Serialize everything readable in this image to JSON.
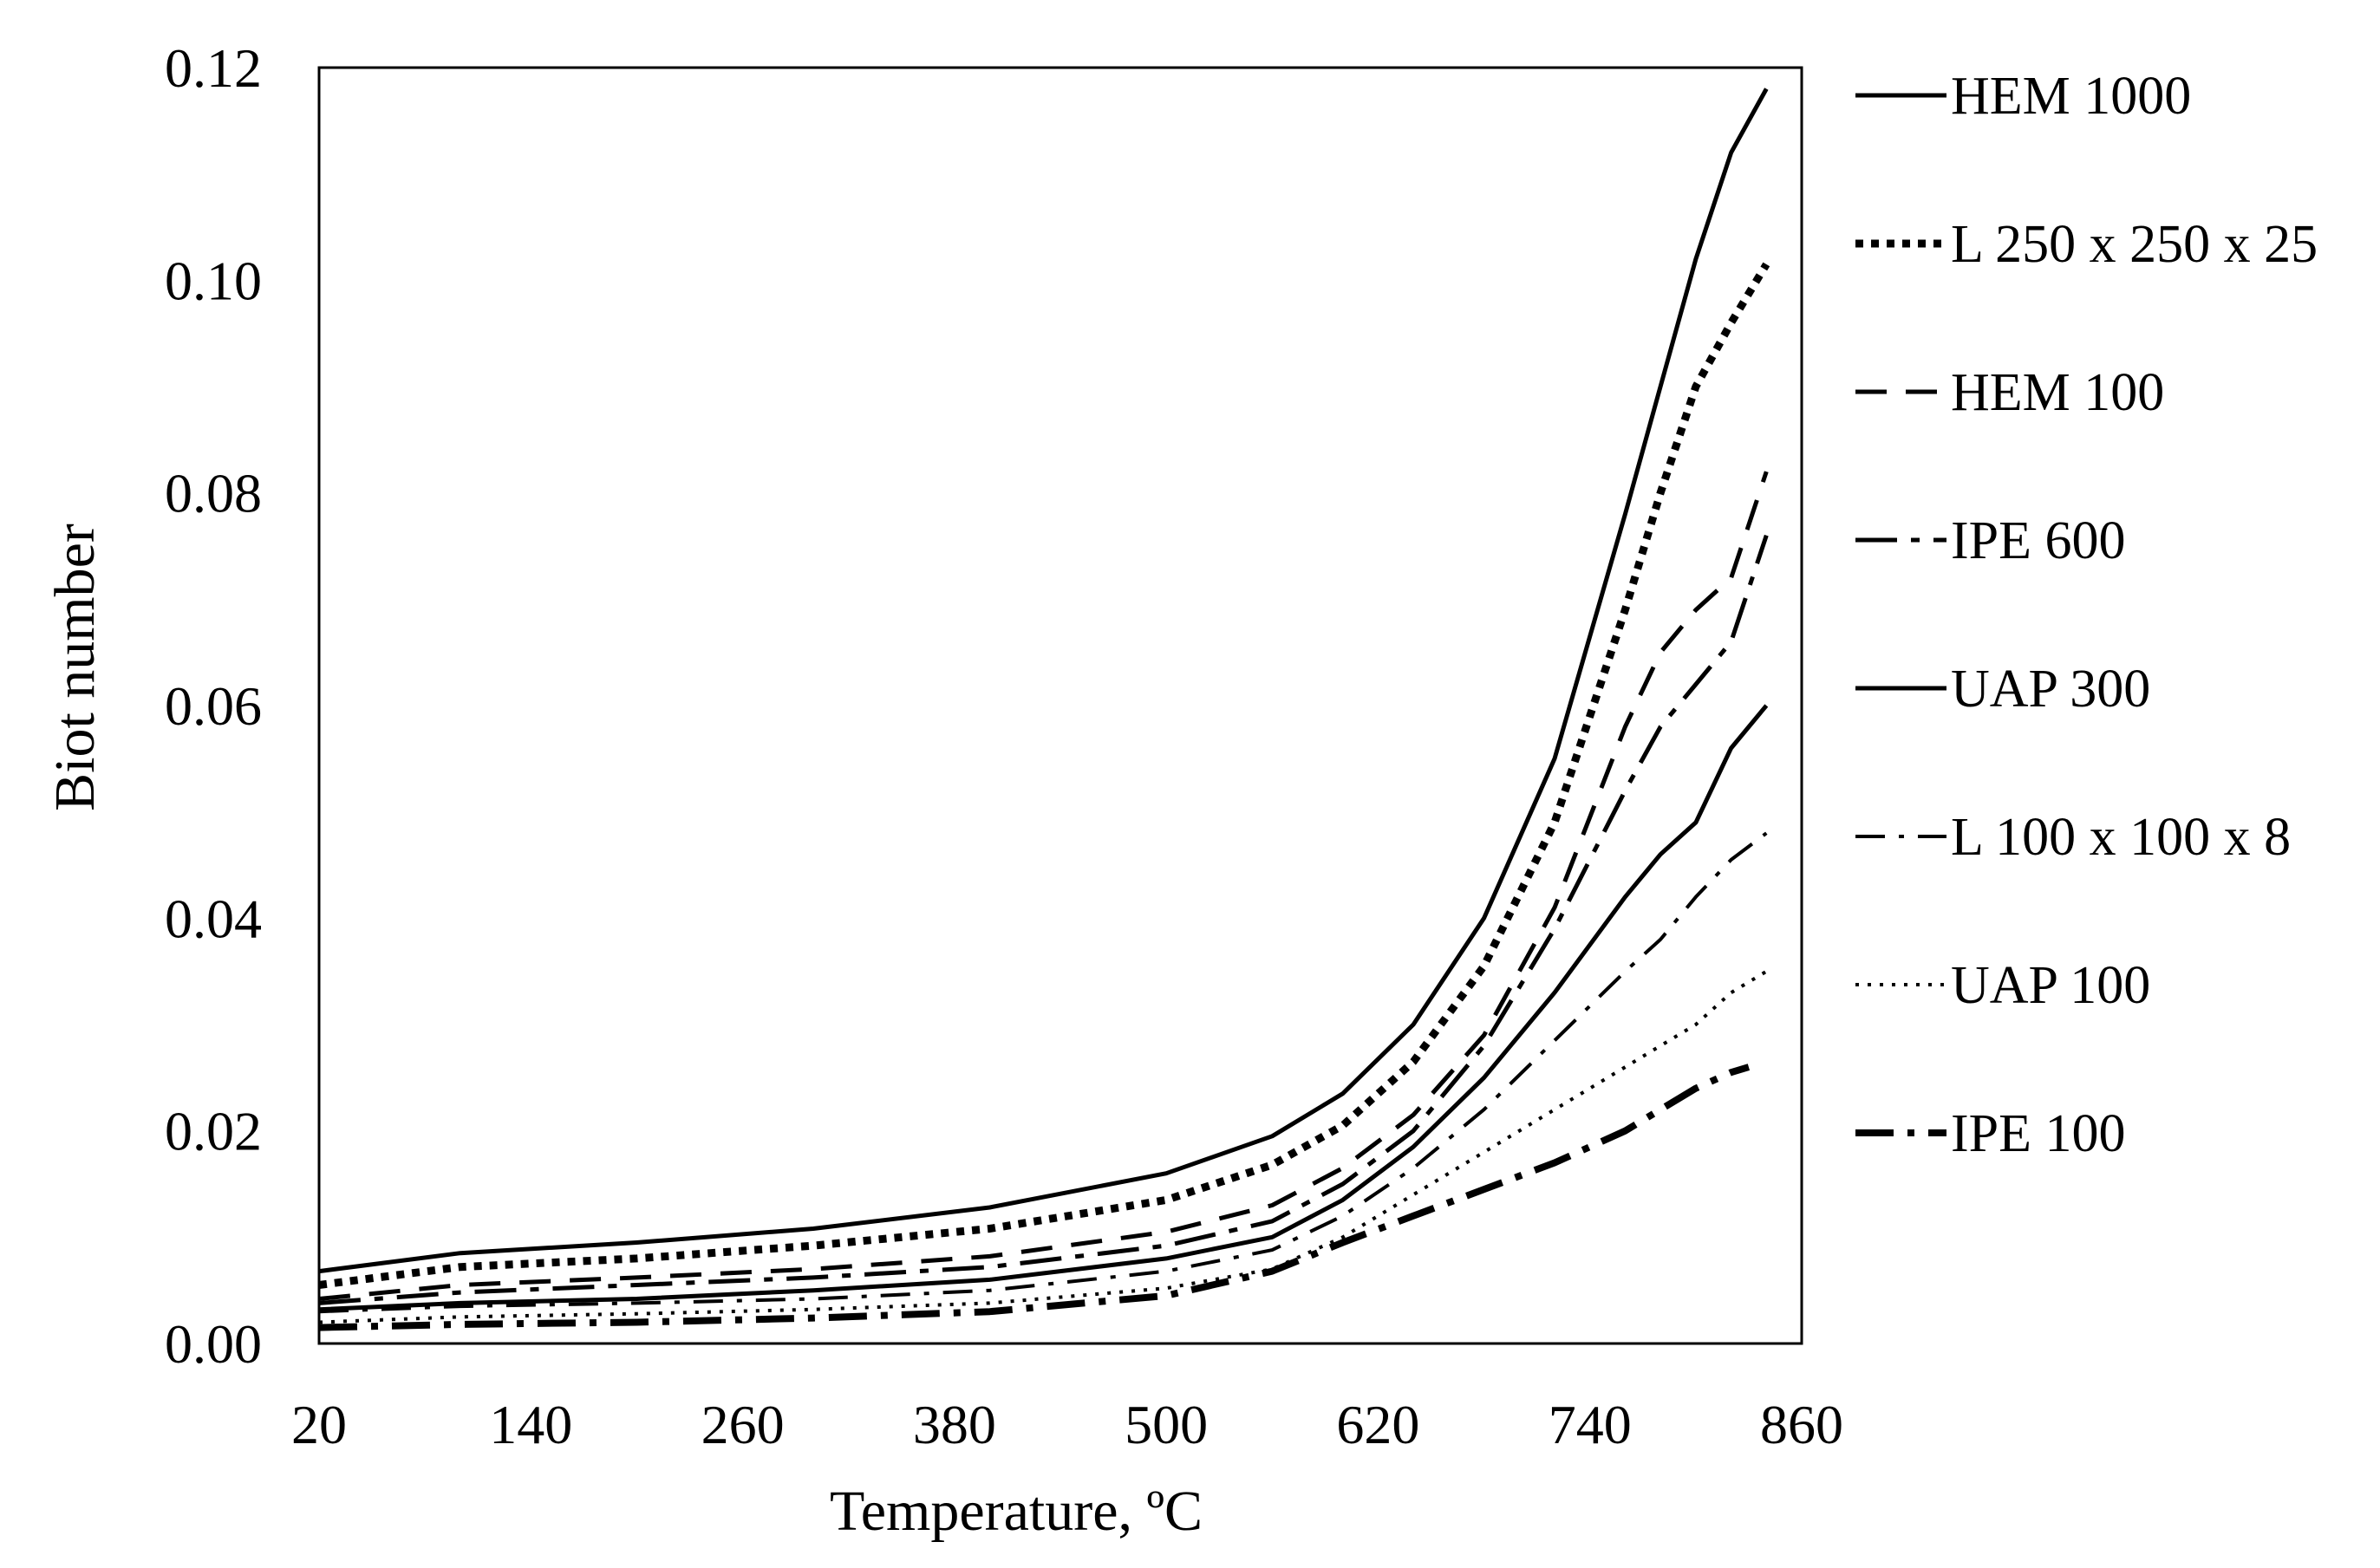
{
  "chart_data": {
    "type": "line",
    "title": "",
    "xlabel": "Temperature, ºC",
    "ylabel": "Biot number",
    "xlim": [
      20,
      860
    ],
    "ylim": [
      0,
      0.12
    ],
    "x_ticks": [
      20,
      140,
      260,
      380,
      500,
      620,
      740,
      860
    ],
    "y_ticks": [
      0.0,
      0.02,
      0.04,
      0.06,
      0.08,
      0.1,
      0.12
    ],
    "x_tick_labels": [
      "20",
      "140",
      "260",
      "380",
      "500",
      "620",
      "740",
      "860"
    ],
    "y_tick_labels": [
      "0.00",
      "0.02",
      "0.04",
      "0.06",
      "0.08",
      "0.10",
      "0.12"
    ],
    "grid": false,
    "legend_position": "right",
    "series": [
      {
        "name": "HEM 1000",
        "style": "solid",
        "x": [
          20,
          100,
          200,
          300,
          400,
          500,
          560,
          600,
          640,
          680,
          720,
          760,
          780,
          800,
          820,
          840
        ],
        "y": [
          0.0068,
          0.0085,
          0.0095,
          0.0108,
          0.0128,
          0.016,
          0.0195,
          0.0235,
          0.03,
          0.04,
          0.055,
          0.078,
          0.09,
          0.102,
          0.112,
          0.118
        ]
      },
      {
        "name": "L 250 x 250 x 25",
        "style": "dotted-bold",
        "x": [
          20,
          100,
          200,
          300,
          400,
          500,
          560,
          600,
          640,
          680,
          720,
          760,
          780,
          800,
          820,
          840
        ],
        "y": [
          0.0055,
          0.0072,
          0.008,
          0.0092,
          0.0108,
          0.0135,
          0.0168,
          0.0205,
          0.0265,
          0.0355,
          0.049,
          0.069,
          0.08,
          0.09,
          0.096,
          0.1015
        ]
      },
      {
        "name": "HEM 100",
        "style": "dashed",
        "x": [
          20,
          100,
          200,
          300,
          400,
          500,
          560,
          600,
          640,
          680,
          720,
          760,
          780,
          800,
          820,
          840
        ],
        "y": [
          0.0042,
          0.0055,
          0.0062,
          0.007,
          0.0082,
          0.0105,
          0.013,
          0.0165,
          0.0215,
          0.029,
          0.041,
          0.058,
          0.065,
          0.069,
          0.072,
          0.082
        ]
      },
      {
        "name": "IPE 600",
        "style": "long-dash-dot",
        "x": [
          20,
          100,
          200,
          300,
          400,
          500,
          560,
          600,
          640,
          680,
          720,
          760,
          780,
          800,
          820,
          840
        ],
        "y": [
          0.0038,
          0.0048,
          0.0055,
          0.0062,
          0.0072,
          0.0092,
          0.0115,
          0.015,
          0.02,
          0.028,
          0.039,
          0.052,
          0.058,
          0.062,
          0.066,
          0.076
        ]
      },
      {
        "name": "UAP 300",
        "style": "solid",
        "x": [
          20,
          100,
          200,
          300,
          400,
          500,
          560,
          600,
          640,
          680,
          720,
          760,
          780,
          800,
          820,
          840
        ],
        "y": [
          0.0032,
          0.0038,
          0.0042,
          0.005,
          0.006,
          0.008,
          0.01,
          0.0135,
          0.0185,
          0.025,
          0.033,
          0.042,
          0.046,
          0.049,
          0.056,
          0.06
        ]
      },
      {
        "name": "L 100 x 100 x 8",
        "style": "dash-dot",
        "x": [
          20,
          100,
          200,
          300,
          400,
          500,
          560,
          600,
          640,
          680,
          720,
          760,
          780,
          800,
          820,
          840
        ],
        "y": [
          0.003,
          0.0035,
          0.0038,
          0.0042,
          0.005,
          0.0068,
          0.0088,
          0.012,
          0.0165,
          0.022,
          0.0285,
          0.035,
          0.038,
          0.042,
          0.0455,
          0.048
        ]
      },
      {
        "name": "UAP 100",
        "style": "dotted",
        "x": [
          20,
          100,
          200,
          300,
          400,
          500,
          560,
          600,
          640,
          680,
          720,
          760,
          780,
          800,
          820,
          840
        ],
        "y": [
          0.002,
          0.0025,
          0.0028,
          0.0032,
          0.0038,
          0.0052,
          0.007,
          0.01,
          0.014,
          0.018,
          0.022,
          0.026,
          0.028,
          0.03,
          0.033,
          0.035
        ]
      },
      {
        "name": "IPE 100",
        "style": "long-dash-dot-bold",
        "x": [
          20,
          100,
          200,
          300,
          400,
          500,
          560,
          600,
          640,
          680,
          720,
          760,
          780,
          800,
          820,
          830
        ],
        "y": [
          0.0015,
          0.0018,
          0.002,
          0.0024,
          0.003,
          0.0045,
          0.0068,
          0.0095,
          0.012,
          0.0145,
          0.017,
          0.02,
          0.022,
          0.024,
          0.0255,
          0.026
        ]
      }
    ]
  }
}
